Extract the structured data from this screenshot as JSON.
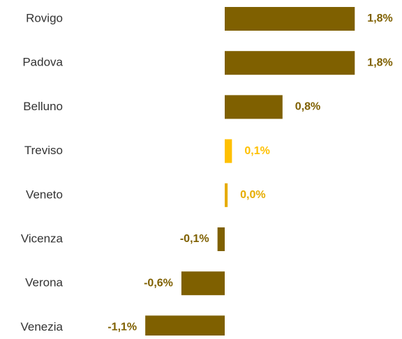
{
  "chart_data": {
    "type": "hbar",
    "categories": [
      "Rovigo",
      "Padova",
      "Belluno",
      "Treviso",
      "Veneto",
      "Vicenza",
      "Verona",
      "Venezia"
    ],
    "values": [
      1.8,
      1.8,
      0.8,
      0.1,
      0.04,
      -0.1,
      -0.6,
      -1.1
    ],
    "value_labels": [
      "1,8%",
      "1,8%",
      "0,8%",
      "0,1%",
      "0,0%",
      "-0,1%",
      "-0,6%",
      "-1,1%"
    ],
    "colors": [
      "#7f6000",
      "#7f6000",
      "#7f6000",
      "#ffc000",
      "#e6ac00",
      "#7f6000",
      "#7f6000",
      "#7f6000"
    ]
  }
}
